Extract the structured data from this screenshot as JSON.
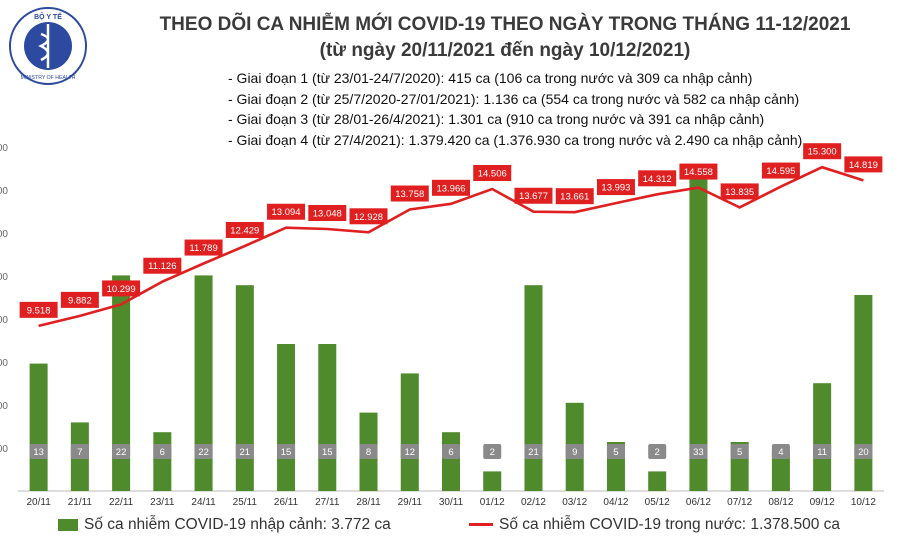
{
  "header": {
    "title_line1": "THEO DÕI CA NHIỄM MỚI COVID-19 THEO NGÀY TRONG THÁNG 11-12/2021",
    "title_line2": "(từ ngày 20/11/2021 đến ngày 10/12/2021)"
  },
  "logo": {
    "top_text": "BỘ Y TẾ",
    "bottom_text": "MINISTRY OF HEALTH",
    "icon": "ministry-of-health-emblem"
  },
  "notes": [
    "- Giai đoạn 1 (từ 23/01-24/7/2020): 415 ca (106 ca trong nước và 309 ca nhập cảnh)",
    "- Giai đoạn 2 (từ 25/7/2020-27/01/2021): 1.136 ca (554 ca trong nước và 582 ca nhập cảnh)",
    "- Giai đoạn 3 (từ 28/01-26/4/2021): 1.301 ca (910 ca trong nước và 391 ca nhập cảnh)",
    "- Giai đoạn 4 (từ 27/4/2021): 1.379.420 ca (1.376.930 ca trong nước và 2.490 ca nhập cảnh)"
  ],
  "legend": {
    "imported": "Số ca nhiễm COVID-19 nhập cảnh: 3.772 ca",
    "domestic": "Số ca nhiễm COVID-19 trong nước: 1.378.500 ca"
  },
  "colors": {
    "bar": "#4f8a2d",
    "line": "#e02020",
    "label_bg": "#e02020",
    "bar_label_bg": "#8a8a8a"
  },
  "chart_data": {
    "type": "bar",
    "categories": [
      "20/11",
      "21/11",
      "22/11",
      "23/11",
      "24/11",
      "25/11",
      "26/11",
      "27/11",
      "28/11",
      "29/11",
      "30/11",
      "01/12",
      "02/12",
      "03/12",
      "04/12",
      "05/12",
      "06/12",
      "07/12",
      "08/12",
      "09/12",
      "10/12"
    ],
    "series": [
      {
        "name": "Số ca nhiễm COVID-19 nhập cảnh",
        "type": "bar",
        "values": [
          13,
          7,
          22,
          6,
          22,
          21,
          15,
          15,
          8,
          12,
          6,
          2,
          21,
          9,
          5,
          2,
          33,
          5,
          4,
          11,
          20
        ],
        "labels": [
          "13",
          "7",
          "22",
          "6",
          "22",
          "21",
          "15",
          "15",
          "8",
          "12",
          "6",
          "2",
          "21",
          "9",
          "5",
          "2",
          "33",
          "5",
          "4",
          "11",
          "20"
        ],
        "y_range": [
          0,
          35
        ]
      },
      {
        "name": "Số ca nhiễm COVID-19 trong nước",
        "type": "line",
        "values": [
          9518,
          9882,
          10299,
          11126,
          11789,
          12429,
          13094,
          13048,
          12928,
          13758,
          13966,
          14506,
          13677,
          13661,
          13993,
          14312,
          14558,
          13835,
          14595,
          15300,
          14819
        ],
        "labels": [
          "9.518",
          "9.882",
          "10.299",
          "11.126",
          "11.789",
          "12.429",
          "13.094",
          "13.048",
          "12.928",
          "13.758",
          "13.966",
          "14.506",
          "13.677",
          "13.661",
          "13.993",
          "14.312",
          "14.558",
          "13.835",
          "14.595",
          "15.300",
          "14.819"
        ],
        "y_range": [
          3500,
          16000
        ]
      }
    ],
    "y_ticks": [
      "00",
      "00",
      "00",
      "00",
      "00",
      "00",
      "00",
      "00"
    ],
    "title": "THEO DÕI CA NHIỄM MỚI COVID-19 THEO NGÀY TRONG THÁNG 11-12/2021",
    "xlabel": "",
    "ylabel": "",
    "grid": true,
    "legend_position": "bottom"
  }
}
